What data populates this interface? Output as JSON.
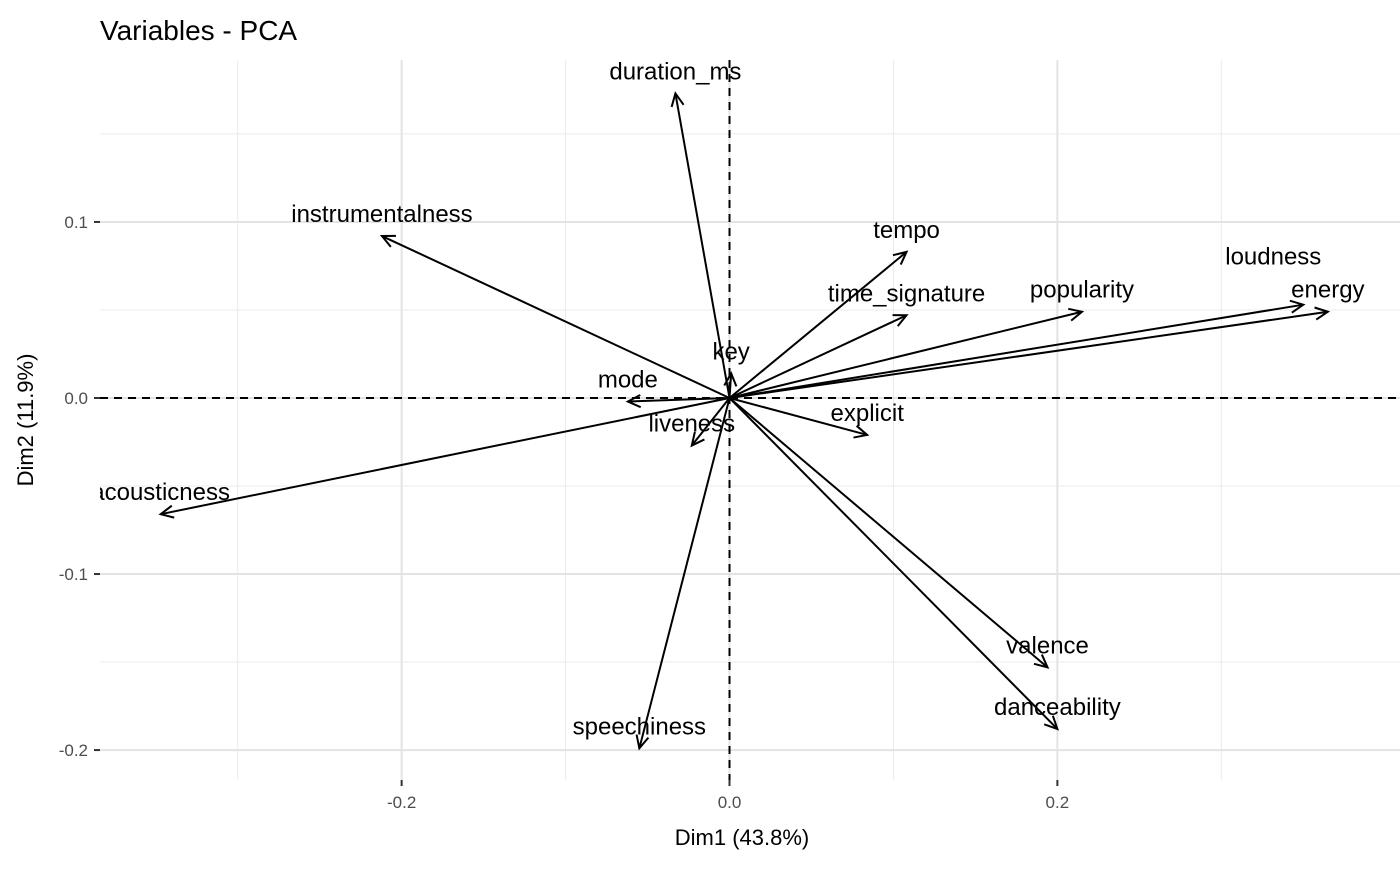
{
  "chart_data": {
    "type": "scatter",
    "subtype": "pca-variable-arrows",
    "title": "Variables - PCA",
    "xlabel": "Dim1 (43.8%)",
    "ylabel": "Dim2 (11.9%)",
    "xlim": [
      -0.384,
      0.409
    ],
    "ylim": [
      -0.217,
      0.192
    ],
    "xticks": [
      -0.2,
      0.0,
      0.2
    ],
    "xtick_labels": [
      "-0.2",
      "0.0",
      "0.2"
    ],
    "yticks": [
      0.1,
      0.0,
      -0.1,
      -0.2
    ],
    "ytick_labels": [
      "0.1",
      "0.0",
      "-0.1",
      "-0.2"
    ],
    "grid": true,
    "reference_lines": "dashed at x=0 and y=0",
    "arrow_color": "#000000",
    "variables": [
      {
        "name": "duration_ms",
        "x": -0.033,
        "y": 0.173
      },
      {
        "name": "instrumentalness",
        "x": -0.212,
        "y": 0.092
      },
      {
        "name": "tempo",
        "x": 0.108,
        "y": 0.083
      },
      {
        "name": "time_signature",
        "x": 0.108,
        "y": 0.047
      },
      {
        "name": "popularity",
        "x": 0.215,
        "y": 0.049
      },
      {
        "name": "loudness",
        "x": 0.35,
        "y": 0.053
      },
      {
        "name": "energy",
        "x": 0.365,
        "y": 0.049
      },
      {
        "name": "key",
        "x": 0.001,
        "y": 0.014
      },
      {
        "name": "mode",
        "x": -0.062,
        "y": -0.002
      },
      {
        "name": "liveness",
        "x": -0.023,
        "y": -0.027
      },
      {
        "name": "explicit",
        "x": 0.084,
        "y": -0.021
      },
      {
        "name": "acousticness",
        "x": -0.347,
        "y": -0.066
      },
      {
        "name": "speechiness",
        "x": -0.055,
        "y": -0.199
      },
      {
        "name": "valence",
        "x": 0.194,
        "y": -0.153
      },
      {
        "name": "danceability",
        "x": 0.2,
        "y": -0.188
      }
    ]
  }
}
